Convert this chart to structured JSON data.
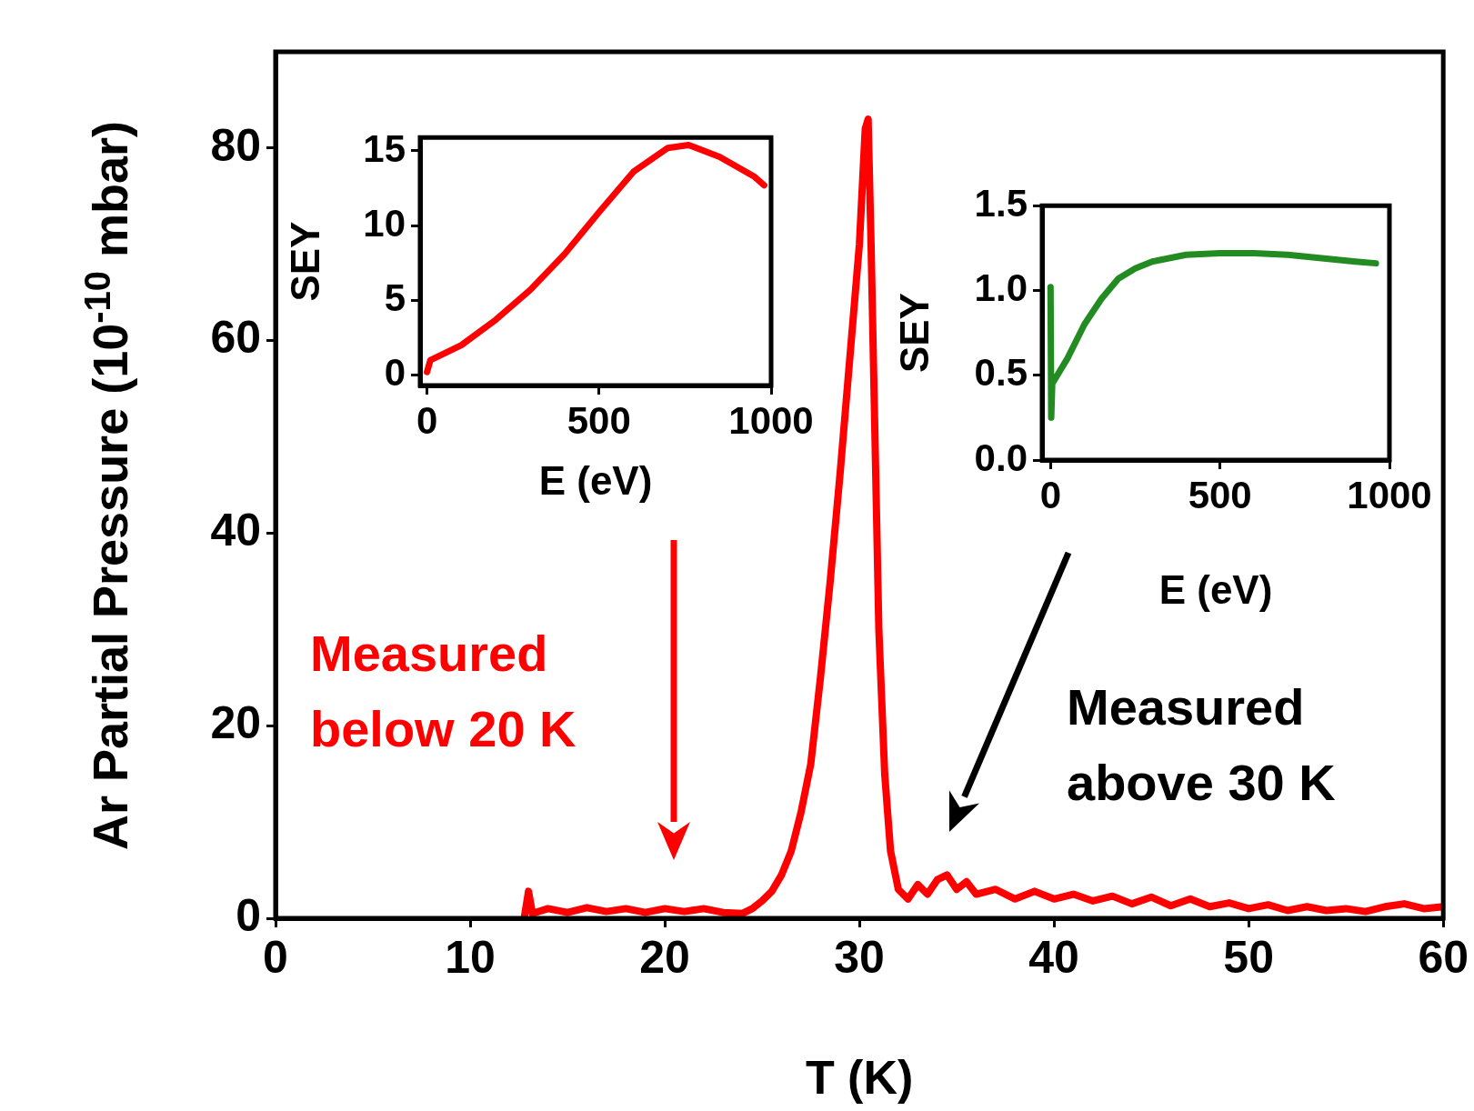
{
  "chart_data": [
    {
      "type": "line",
      "xlabel": "T (K)",
      "ylabel": "Ar Partial Pressure (10$^{-10}$ mbar)",
      "xlim": [
        0,
        60
      ],
      "ylim": [
        0,
        90
      ],
      "xticks": [
        0,
        10,
        20,
        30,
        40,
        50,
        60
      ],
      "yticks": [
        0,
        20,
        40,
        60,
        80
      ],
      "x": [
        12.8,
        13,
        13.2,
        14,
        15,
        16,
        17,
        18,
        19,
        20,
        21,
        22,
        23,
        24,
        24.5,
        25,
        25.5,
        26,
        26.5,
        27,
        27.5,
        28,
        28.5,
        29,
        29.5,
        30,
        30.3,
        30.45,
        30.6,
        30.8,
        31,
        31.3,
        31.6,
        32,
        32.5,
        33,
        33.5,
        34,
        34.5,
        35,
        35.5,
        36,
        37,
        38,
        39,
        40,
        41,
        42,
        43,
        44,
        45,
        46,
        47,
        48,
        49,
        50,
        51,
        52,
        53,
        54,
        55,
        56,
        57,
        58,
        59,
        60
      ],
      "series": [
        {
          "color": "#ff0000",
          "values": [
            0.3,
            2.8,
            0.5,
            1,
            0.6,
            1.1,
            0.7,
            1,
            0.6,
            1,
            0.7,
            1,
            0.6,
            0.5,
            1,
            1.8,
            2.8,
            4.5,
            7,
            11,
            16,
            25,
            35,
            46,
            58,
            70,
            82,
            83,
            70,
            50,
            30,
            15,
            7,
            3,
            2,
            3.5,
            2.5,
            4,
            4.5,
            3,
            3.8,
            2.5,
            3,
            2,
            2.8,
            2,
            2.5,
            1.8,
            2.3,
            1.5,
            2.2,
            1.3,
            2,
            1.2,
            1.6,
            1,
            1.4,
            0.8,
            1.2,
            0.8,
            1,
            0.7,
            1.2,
            1.5,
            1,
            1.2
          ]
        }
      ],
      "annotations": [
        "Measured\nbelow 20 K",
        "Measured\nabove 30 K"
      ]
    },
    {
      "type": "line",
      "xlabel": "E (eV)",
      "ylabel": "SEY",
      "xlim": [
        -20,
        1000
      ],
      "ylim": [
        -0.7,
        15.9
      ],
      "xticks": [
        0,
        500,
        1000
      ],
      "yticks": [
        0,
        5,
        10,
        15
      ],
      "x": [
        0,
        10,
        100,
        200,
        300,
        400,
        500,
        600,
        700,
        760,
        850,
        950,
        980
      ],
      "series": [
        {
          "color": "#ff0000",
          "values": [
            0.2,
            1,
            2,
            3.7,
            5.7,
            8.1,
            10.9,
            13.6,
            15.2,
            15.4,
            14.6,
            13.3,
            12.7
          ]
        }
      ]
    },
    {
      "type": "line",
      "xlabel": "E (eV)",
      "ylabel": "SEY",
      "xlim": [
        -25,
        1000
      ],
      "ylim": [
        0,
        1.5
      ],
      "xticks": [
        0,
        500,
        1000
      ],
      "yticks": [
        {
          "value": 0,
          "label": "0.0"
        },
        {
          "value": 0.5,
          "label": "0.5"
        },
        {
          "value": 1,
          "label": "1.0"
        },
        {
          "value": 1.5,
          "label": "1.5"
        }
      ],
      "x": [
        0,
        2,
        5,
        50,
        100,
        150,
        200,
        250,
        300,
        400,
        500,
        600,
        700,
        800,
        900,
        960
      ],
      "series": [
        {
          "color": "#228b22",
          "values": [
            1.02,
            0.25,
            0.45,
            0.6,
            0.8,
            0.95,
            1.07,
            1.13,
            1.17,
            1.21,
            1.22,
            1.22,
            1.21,
            1.19,
            1.17,
            1.16
          ]
        }
      ]
    }
  ]
}
